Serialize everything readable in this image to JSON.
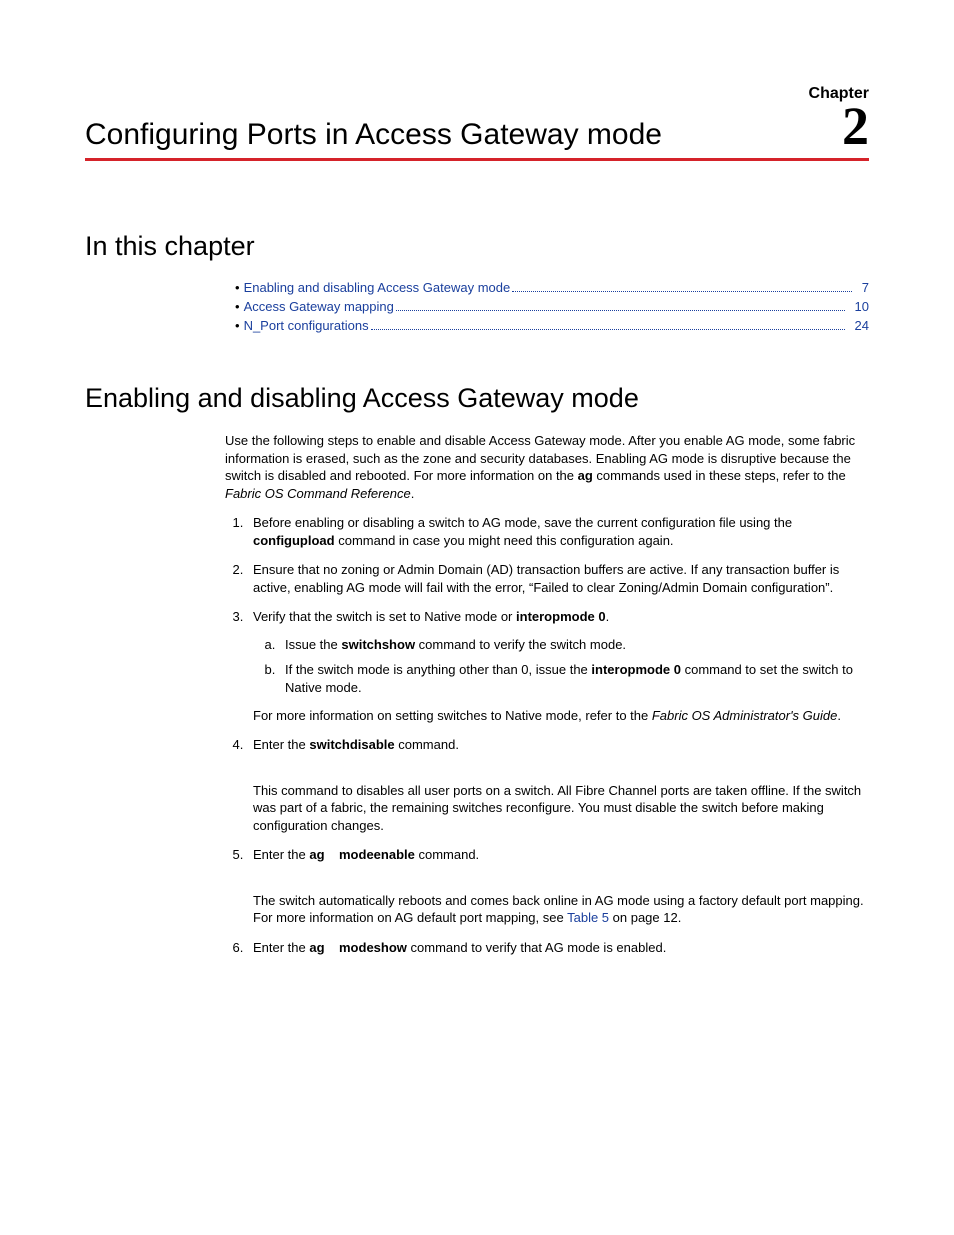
{
  "colors": {
    "accent": "#d5232a",
    "link": "#1a3f9d",
    "text": "#000000",
    "background": "#ffffff"
  },
  "header": {
    "chapter_label": "Chapter",
    "chapter_number": "2",
    "chapter_title": "Configuring Ports in Access Gateway mode"
  },
  "toc": {
    "heading": "In this chapter",
    "items": [
      {
        "label": "Enabling and disabling Access Gateway mode",
        "page": "7"
      },
      {
        "label": "Access Gateway mapping",
        "page": "10"
      },
      {
        "label": "N_Port configurations",
        "page": "24"
      }
    ]
  },
  "section": {
    "heading": "Enabling and disabling Access Gateway mode",
    "intro": {
      "t1": "Use the following steps to enable and disable Access Gateway mode. After you enable AG mode, some fabric information is erased, such as the zone and security databases. Enabling AG mode is disruptive because the switch is disabled and rebooted. For more information on the ",
      "b1": "ag",
      "t2": " commands used in these steps, refer to the ",
      "i1": "Fabric OS Command Reference",
      "t3": "."
    },
    "step1": {
      "t1": "Before enabling or disabling a switch to AG mode, save the current configuration file using the ",
      "b1": "configupload",
      "t2": " command in case you might need this configuration again."
    },
    "step2": {
      "t1": "Ensure that no zoning or Admin Domain (AD) transaction buffers are active. If any transaction buffer is active, enabling AG mode will fail with the error, “Failed to clear Zoning/Admin Domain configuration”."
    },
    "step3": {
      "t1": "Verify that the switch is set to Native mode or ",
      "b1": "interopmode 0",
      "t2": ".",
      "a": {
        "t1": "Issue the ",
        "b1": "switchshow",
        "t2": " command to verify the switch mode."
      },
      "b": {
        "t1": "If the switch mode is anything other than 0, issue the ",
        "b1": "interopmode 0",
        "t2": " command to set the switch to Native mode."
      },
      "note": {
        "t1": "For more information on setting switches to Native mode, refer to the ",
        "i1": "Fabric OS Administrator's Guide",
        "t2": "."
      }
    },
    "step4": {
      "t1": "Enter the ",
      "b1": "switchdisable",
      "t2": " command.",
      "body": "This command to disables all user ports on a switch. All Fibre Channel ports are taken offline. If the switch was part of a fabric, the remaining switches reconfigure. You must disable the switch before making configuration changes."
    },
    "step5": {
      "t1": "Enter the ",
      "b1": "ag",
      "b2": "modeenable",
      "t2": " command.",
      "body": {
        "t1": "The switch automatically reboots and comes back online in AG mode using a factory default port mapping. For more information on AG default port mapping, see ",
        "l1": "Table 5",
        "t2": " on page 12."
      }
    },
    "step6": {
      "t1": "Enter the ",
      "b1": "ag",
      "b2": "modeshow",
      "t2": " command to verify that AG mode is enabled."
    }
  }
}
